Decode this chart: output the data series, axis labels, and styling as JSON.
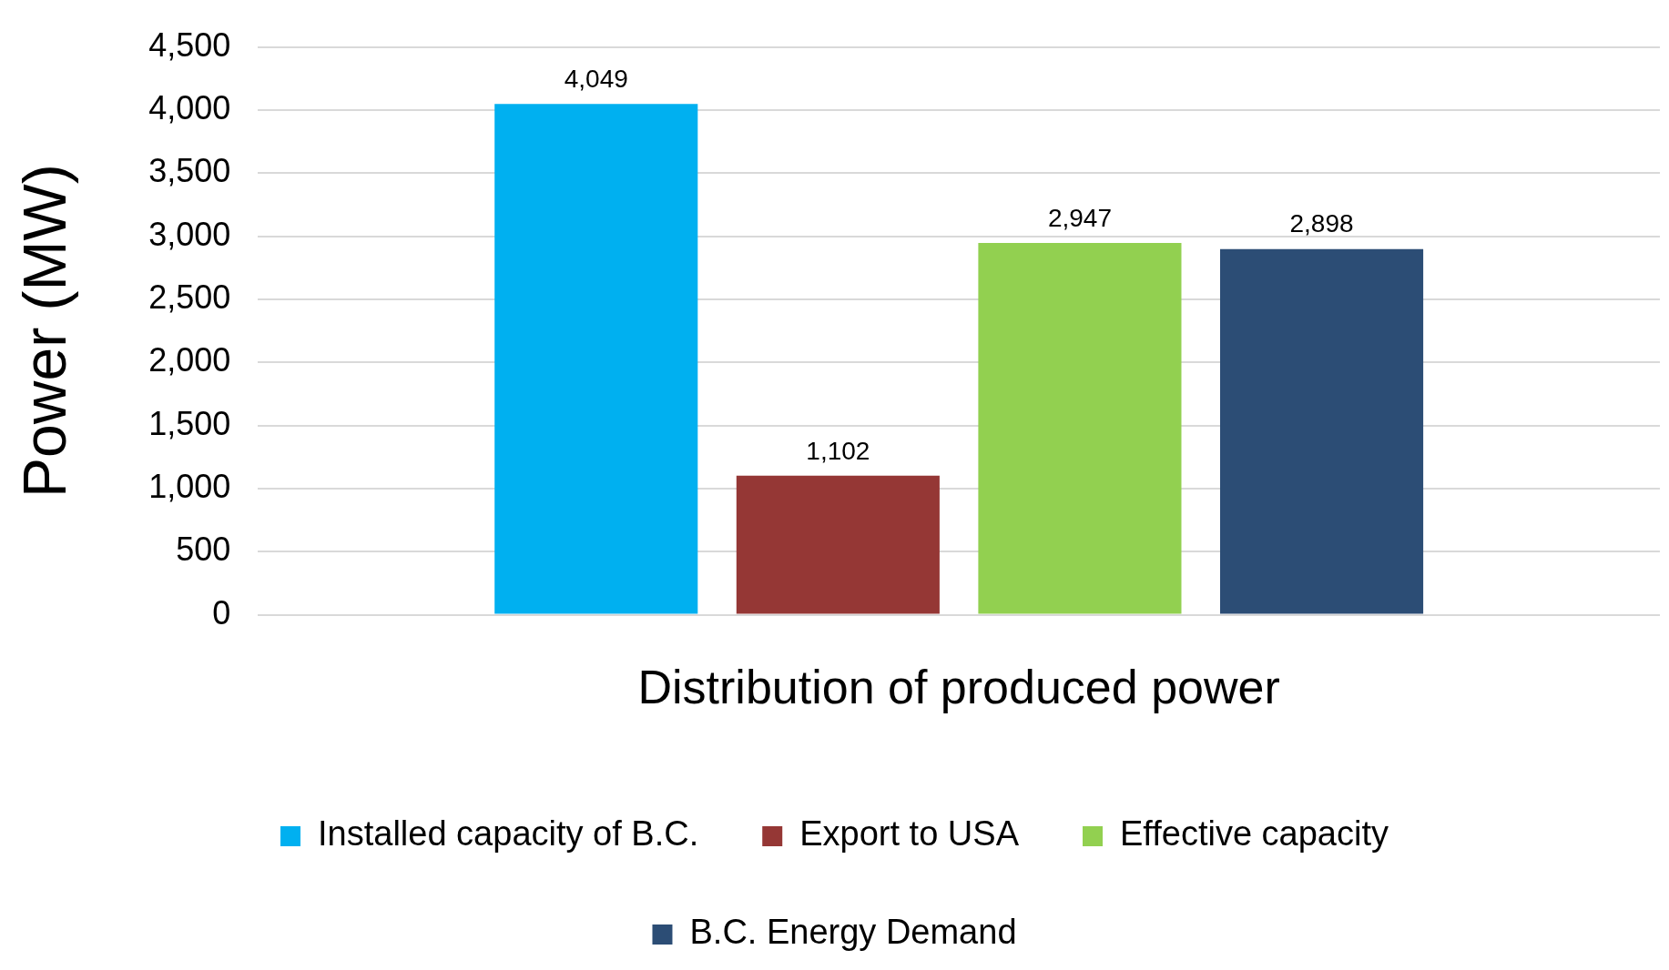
{
  "chart_data": {
    "type": "bar",
    "xlabel": "Distribution of produced power",
    "ylabel": "Power (MW)",
    "categories": [
      null
    ],
    "series": [
      {
        "name": "Installed capacity of B.C.",
        "color": "#00b0f0",
        "values": [
          4049
        ],
        "value_labels": [
          "4,049"
        ]
      },
      {
        "name": "Export to USA",
        "color": "#953735",
        "values": [
          1102
        ],
        "value_labels": [
          "1,102"
        ]
      },
      {
        "name": "Effective capacity",
        "color": "#92d050",
        "values": [
          2947
        ],
        "value_labels": [
          "2,947"
        ]
      },
      {
        "name": "B.C. Energy Demand",
        "color": "#2c4d75",
        "values": [
          2898
        ],
        "value_labels": [
          "2,898"
        ]
      }
    ],
    "ylim": [
      0,
      4500
    ],
    "yticks": [
      0,
      {
        "value": 500,
        "label": "500"
      },
      {
        "value": 1000,
        "label": "1,000"
      },
      {
        "value": 1500,
        "label": "1,500"
      },
      {
        "value": 2000,
        "label": "2,000"
      },
      {
        "value": 2500,
        "label": "2,500"
      },
      {
        "value": 3000,
        "label": "3,000"
      },
      {
        "value": 3500,
        "label": "3,500"
      },
      {
        "value": 4000,
        "label": "4,000"
      },
      {
        "value": 4500,
        "label": "4,500"
      }
    ],
    "grid": "y",
    "legend": "bottom"
  }
}
